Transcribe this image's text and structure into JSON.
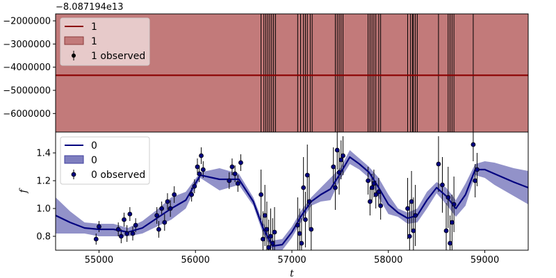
{
  "chart_data": [
    {
      "type": "line",
      "panel": "top",
      "offset_label": "−8.087194e13",
      "ylim": [
        -6800000,
        -1700000
      ],
      "yticks": [
        -2000000,
        -3000000,
        -4000000,
        -5000000,
        -6000000
      ],
      "ytick_labels": [
        "−2000000",
        "−3000000",
        "−4000000",
        "−5000000",
        "−6000000"
      ],
      "xlim": [
        54550,
        59450
      ],
      "grid": false,
      "legend_position": "top-left",
      "colors": {
        "line": "#8b0000",
        "band": "#c27a7a",
        "obs": "#000000"
      },
      "series": [
        {
          "name": "1",
          "kind": "line",
          "value": -4350000
        },
        {
          "name": "1",
          "kind": "band",
          "lower": -6800000,
          "upper": -1700000
        },
        {
          "name": "1 observed",
          "kind": "errorbar",
          "note_shown": true
        }
      ],
      "observation_times": [
        56680,
        56710,
        56730,
        56750,
        56770,
        56790,
        56810,
        56830,
        57060,
        57090,
        57120,
        57140,
        57160,
        57190,
        57210,
        57450,
        57470,
        57490,
        57510,
        57530,
        57790,
        57810,
        57830,
        57850,
        57870,
        57900,
        57920,
        58200,
        58230,
        58250,
        58260,
        58280,
        58300,
        58520,
        58620,
        58640,
        58660,
        58680,
        58880
      ]
    },
    {
      "type": "line",
      "panel": "bottom",
      "ylim": [
        0.7,
        1.55
      ],
      "yticks": [
        0.8,
        1.0,
        1.2,
        1.4
      ],
      "ytick_labels": [
        "0.8",
        "1.0",
        "1.2",
        "1.4"
      ],
      "xlim": [
        54550,
        59450
      ],
      "xticks": [
        55000,
        56000,
        57000,
        58000,
        59000
      ],
      "xtick_labels": [
        "55000",
        "56000",
        "57000",
        "58000",
        "59000"
      ],
      "xlabel": "t",
      "ylabel": "f",
      "grid": false,
      "legend_position": "top-left",
      "colors": {
        "line": "#00007f",
        "band": "#7f7fbf",
        "obs": "#00007f"
      },
      "series": [
        {
          "name": "0",
          "kind": "line",
          "x": [
            54550,
            54700,
            54850,
            55000,
            55150,
            55300,
            55450,
            55600,
            55750,
            55900,
            56050,
            56250,
            56450,
            56600,
            56700,
            56800,
            56900,
            57000,
            57100,
            57200,
            57300,
            57400,
            57500,
            57600,
            57700,
            57800,
            57900,
            58000,
            58100,
            58200,
            58300,
            58400,
            58500,
            58600,
            58700,
            58800,
            58900,
            59000,
            59100,
            59200,
            59300,
            59450
          ],
          "y": [
            0.95,
            0.9,
            0.86,
            0.85,
            0.85,
            0.83,
            0.86,
            0.93,
            1.0,
            1.06,
            1.24,
            1.21,
            1.21,
            1.05,
            0.86,
            0.73,
            0.74,
            0.83,
            0.95,
            1.05,
            1.1,
            1.14,
            1.25,
            1.37,
            1.32,
            1.26,
            1.15,
            1.03,
            0.97,
            0.93,
            0.95,
            1.06,
            1.15,
            1.09,
            1.0,
            1.1,
            1.28,
            1.28,
            1.25,
            1.22,
            1.19,
            1.15
          ]
        },
        {
          "name": "0",
          "kind": "band",
          "x": [
            54550,
            54700,
            54850,
            55000,
            55150,
            55300,
            55450,
            55600,
            55750,
            55900,
            56050,
            56250,
            56450,
            56600,
            56700,
            56800,
            56900,
            57000,
            57100,
            57200,
            57300,
            57400,
            57500,
            57600,
            57700,
            57800,
            57900,
            58000,
            58100,
            58200,
            58300,
            58400,
            58500,
            58600,
            58700,
            58800,
            58900,
            59000,
            59100,
            59200,
            59300,
            59450
          ],
          "upper": [
            1.08,
            0.98,
            0.9,
            0.89,
            0.89,
            0.86,
            0.91,
            0.99,
            1.08,
            1.12,
            1.26,
            1.29,
            1.25,
            1.08,
            0.9,
            0.77,
            0.78,
            0.87,
            0.99,
            1.08,
            1.15,
            1.22,
            1.29,
            1.42,
            1.36,
            1.3,
            1.22,
            1.1,
            1.0,
            0.97,
            1.0,
            1.12,
            1.19,
            1.15,
            1.06,
            1.18,
            1.32,
            1.34,
            1.33,
            1.31,
            1.29,
            1.27
          ],
          "lower": [
            0.82,
            0.82,
            0.82,
            0.8,
            0.8,
            0.8,
            0.82,
            0.87,
            0.92,
            1.0,
            1.22,
            1.13,
            1.17,
            1.02,
            0.82,
            0.7,
            0.7,
            0.79,
            0.91,
            1.02,
            1.05,
            1.06,
            1.21,
            1.32,
            1.28,
            1.22,
            1.08,
            0.96,
            0.94,
            0.89,
            0.9,
            1.0,
            1.11,
            1.03,
            0.94,
            1.02,
            1.24,
            1.22,
            1.17,
            1.13,
            1.09,
            1.03
          ]
        },
        {
          "name": "0 observed",
          "kind": "errorbar",
          "x": [
            54970,
            55000,
            55200,
            55230,
            55260,
            55290,
            55320,
            55350,
            55380,
            55600,
            55620,
            55650,
            55680,
            55710,
            55740,
            55780,
            55960,
            55990,
            56020,
            56040,
            56060,
            56080,
            56350,
            56380,
            56410,
            56440,
            56470,
            56680,
            56700,
            56720,
            56740,
            56760,
            56780,
            56800,
            56820,
            57060,
            57080,
            57100,
            57120,
            57140,
            57160,
            57180,
            57200,
            57430,
            57450,
            57470,
            57490,
            57510,
            57530,
            57790,
            57810,
            57830,
            57850,
            57870,
            57900,
            57920,
            58200,
            58220,
            58240,
            58260,
            58280,
            58520,
            58560,
            58600,
            58620,
            58640,
            58660,
            58680,
            58880,
            58900,
            58920
          ],
          "y": [
            0.78,
            0.87,
            0.85,
            0.8,
            0.92,
            0.82,
            0.96,
            0.82,
            0.88,
            0.95,
            0.85,
            1.0,
            0.9,
            1.05,
            1.0,
            1.1,
            1.1,
            1.16,
            1.3,
            1.25,
            1.38,
            1.28,
            1.2,
            1.3,
            1.25,
            1.18,
            1.33,
            1.1,
            0.78,
            0.95,
            0.85,
            0.72,
            0.8,
            0.75,
            0.83,
            0.88,
            0.82,
            0.75,
            1.15,
            0.92,
            1.24,
            1.05,
            0.85,
            1.3,
            1.15,
            1.42,
            1.26,
            1.35,
            1.38,
            1.2,
            1.05,
            1.15,
            1.18,
            1.1,
            1.12,
            1.02,
            1.0,
            0.8,
            1.05,
            0.84,
            0.95,
            1.32,
            1.17,
            0.84,
            1.08,
            0.75,
            0.9,
            1.03,
            1.46,
            1.2,
            1.28
          ],
          "err": [
            0.04,
            0.04,
            0.05,
            0.05,
            0.05,
            0.06,
            0.05,
            0.05,
            0.05,
            0.06,
            0.06,
            0.05,
            0.06,
            0.06,
            0.06,
            0.06,
            0.05,
            0.05,
            0.06,
            0.06,
            0.06,
            0.06,
            0.06,
            0.06,
            0.06,
            0.06,
            0.06,
            0.18,
            0.2,
            0.22,
            0.2,
            0.2,
            0.2,
            0.18,
            0.18,
            0.2,
            0.18,
            0.18,
            0.22,
            0.2,
            0.22,
            0.2,
            0.18,
            0.14,
            0.16,
            0.14,
            0.16,
            0.14,
            0.14,
            0.1,
            0.1,
            0.1,
            0.1,
            0.1,
            0.1,
            0.1,
            0.22,
            0.24,
            0.22,
            0.24,
            0.22,
            0.2,
            0.2,
            0.2,
            0.22,
            0.2,
            0.2,
            0.2,
            0.12,
            0.12,
            0.12
          ]
        }
      ]
    }
  ]
}
